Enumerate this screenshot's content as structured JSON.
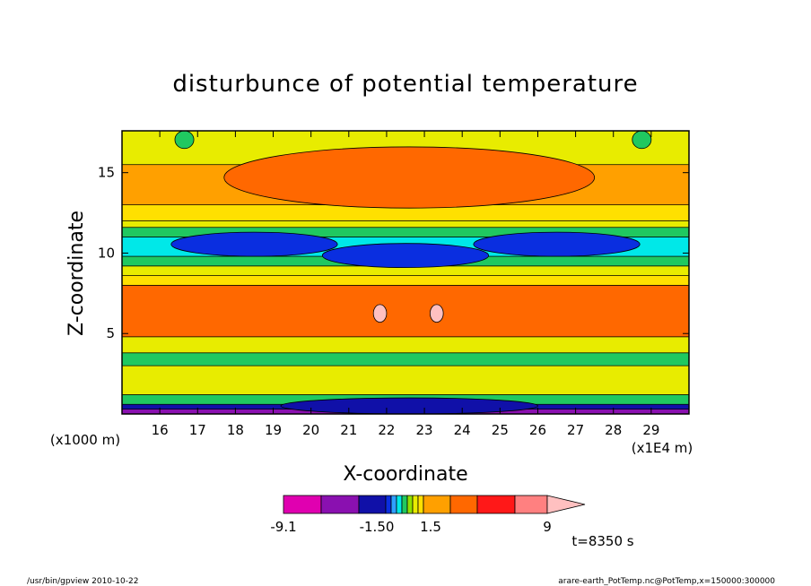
{
  "chart_data": {
    "type": "heatmap",
    "title": "disturbunce of potential temperature",
    "xlabel": "X-coordinate",
    "ylabel": "Z-coordinate",
    "x_unit_label": "(x1E4 m)",
    "y_unit_label": "(x1000 m)",
    "xlim": [
      15,
      30
    ],
    "ylim": [
      0,
      17.6
    ],
    "x_ticks": [
      "16",
      "17",
      "18",
      "19",
      "20",
      "21",
      "22",
      "23",
      "24",
      "25",
      "26",
      "27",
      "28",
      "29"
    ],
    "y_ticks": [
      "5",
      "10",
      "15"
    ],
    "colorbar": {
      "labels": [
        "-9.1",
        "-1.50",
        "1.5",
        "9"
      ],
      "levels": [
        -9.1,
        -6.1,
        -4.0,
        -2.1,
        -1.5,
        -1.0,
        -0.6,
        -0.3,
        0,
        0.3,
        0.6,
        1.0,
        1.5,
        3.0,
        6.0,
        9.0
      ],
      "colors": [
        "#e000b0",
        "#8a10b0",
        "#1010a8",
        "#0a2ee0",
        "#2fa0ff",
        "#00e8e8",
        "#20c860",
        "#90e000",
        "#e8ec00",
        "#ffe000",
        "#ffa000",
        "#ff6800",
        "#ff1818",
        "#ff8080",
        "#ffc0c0"
      ]
    },
    "bands": [
      {
        "z": [
          0.0,
          0.3
        ],
        "value": -6.1
      },
      {
        "z": [
          0.3,
          0.6
        ],
        "value": -3.0
      },
      {
        "z": [
          0.6,
          1.2
        ],
        "value": -0.4
      },
      {
        "z": [
          1.2,
          3.0
        ],
        "value": 0.1
      },
      {
        "z": [
          3.0,
          3.8
        ],
        "value": -0.4
      },
      {
        "z": [
          3.8,
          4.8
        ],
        "value": 0.1
      },
      {
        "z": [
          4.8,
          8.0
        ],
        "value": 1.2
      },
      {
        "z": [
          8.0,
          8.6
        ],
        "value": 0.4
      },
      {
        "z": [
          8.6,
          9.2
        ],
        "value": 0.1
      },
      {
        "z": [
          9.2,
          9.8
        ],
        "value": -0.4
      },
      {
        "z": [
          9.8,
          11.0
        ],
        "value": -0.8
      },
      {
        "z": [
          11.0,
          11.6
        ],
        "value": -0.4
      },
      {
        "z": [
          11.6,
          12.0
        ],
        "value": 0.1
      },
      {
        "z": [
          12.0,
          13.0
        ],
        "value": 0.4
      },
      {
        "z": [
          13.0,
          15.5
        ],
        "value": 0.8
      },
      {
        "z": [
          15.5,
          17.6
        ],
        "value": 0.1
      }
    ],
    "features": [
      {
        "name": "upper-warm-core",
        "x": [
          17.7,
          27.5
        ],
        "z": [
          12.8,
          16.6
        ],
        "value": 1.2
      },
      {
        "name": "cold-lobe-left",
        "x": [
          16.3,
          20.7
        ],
        "z": [
          9.8,
          11.3
        ],
        "value": -2.1
      },
      {
        "name": "cold-lobe-center",
        "x": [
          20.3,
          24.7
        ],
        "z": [
          9.1,
          10.6
        ],
        "value": -2.1
      },
      {
        "name": "cold-lobe-right",
        "x": [
          24.3,
          28.7
        ],
        "z": [
          9.8,
          11.3
        ],
        "value": -2.1
      },
      {
        "name": "warm-spot-left",
        "x": [
          21.65,
          22.0
        ],
        "z": [
          5.7,
          6.8
        ],
        "value": 6.0
      },
      {
        "name": "warm-spot-right",
        "x": [
          23.15,
          23.5
        ],
        "z": [
          5.7,
          6.8
        ],
        "value": 6.0
      },
      {
        "name": "top-green-left",
        "x": [
          16.4,
          16.9
        ],
        "z": [
          16.5,
          17.6
        ],
        "value": -0.4
      },
      {
        "name": "top-green-right",
        "x": [
          28.5,
          29.0
        ],
        "z": [
          16.5,
          17.6
        ],
        "value": -0.4
      },
      {
        "name": "surface-cold-pool",
        "x": [
          19.2,
          26.0
        ],
        "z": [
          0.0,
          1.0
        ],
        "value": -4.0
      }
    ]
  },
  "annotations": {
    "time": "t=8350 s",
    "footer_left": "/usr/bin/gpview   2010-10-22",
    "footer_right": "arare-earth_PotTemp.nc@PotTemp,x=150000:300000"
  }
}
